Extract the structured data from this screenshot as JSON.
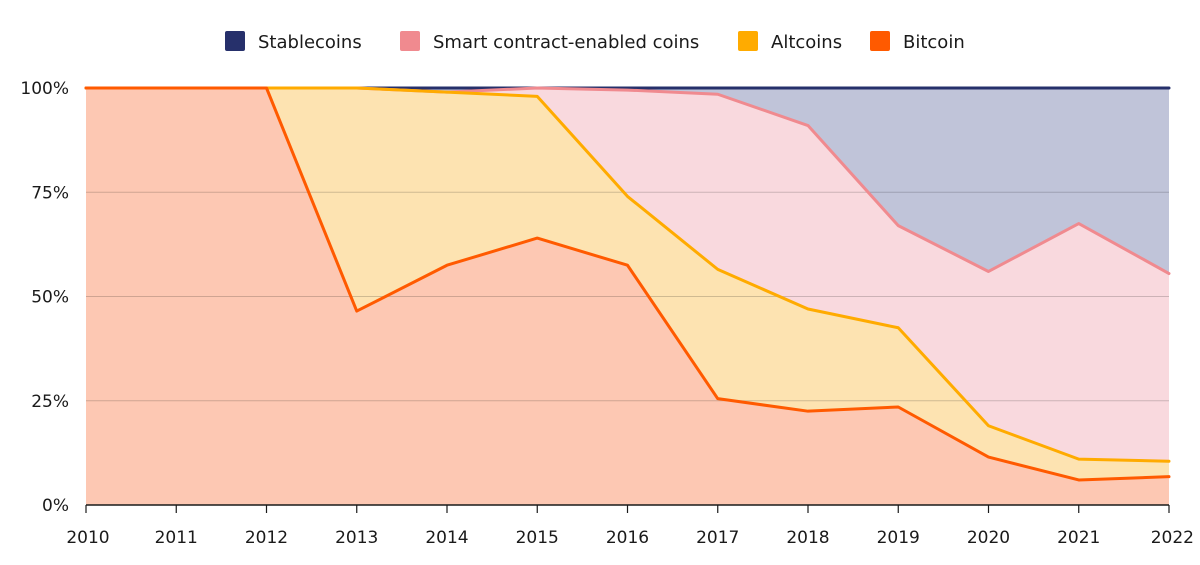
{
  "chart_data": {
    "type": "area",
    "stacked": true,
    "normalized": true,
    "title": "",
    "xlabel": "",
    "ylabel": "",
    "x": [
      "2010",
      "2011",
      "2012",
      "2013",
      "2014",
      "2015",
      "2016",
      "2017",
      "2018",
      "2019",
      "2020",
      "2021",
      "2022"
    ],
    "ylim": [
      0,
      100
    ],
    "yticks": [
      0,
      25,
      50,
      75,
      100
    ],
    "ytick_labels": [
      "0%",
      "25%",
      "50%",
      "75%",
      "100%"
    ],
    "grid": true,
    "legend_position": "top-center",
    "series": [
      {
        "name": "Bitcoin",
        "line_color": "#ff5a00",
        "fill_color": "#fdc8b3",
        "values": [
          100,
          100,
          100,
          46.5,
          57.5,
          64,
          57.5,
          25.5,
          22.5,
          23.5,
          11.5,
          6,
          6.8
        ]
      },
      {
        "name": "Altcoins",
        "line_color": "#ffab00",
        "fill_color": "#fde3b1",
        "values": [
          0,
          0,
          0,
          53.5,
          41.5,
          34,
          16.5,
          31,
          24.5,
          19,
          7.5,
          5,
          3.7
        ]
      },
      {
        "name": "Smart contract-enabled coins",
        "line_color": "#f08a8f",
        "fill_color": "#f9d9de",
        "values": [
          0,
          0,
          0,
          0,
          0,
          2,
          25.5,
          42,
          44,
          24.5,
          37,
          56.5,
          45
        ]
      },
      {
        "name": "Stablecoins",
        "line_color": "#26306b",
        "fill_color": "#c0c4d9",
        "values": [
          0,
          0,
          0,
          0,
          1,
          0,
          0.5,
          1.5,
          9,
          33,
          44,
          32.5,
          44.5
        ]
      }
    ],
    "legend": [
      {
        "name": "Stablecoins",
        "color": "#26306b"
      },
      {
        "name": "Smart contract-enabled coins",
        "color": "#f08a8f"
      },
      {
        "name": "Altcoins",
        "color": "#ffab00"
      },
      {
        "name": "Bitcoin",
        "color": "#ff5a00"
      }
    ]
  }
}
